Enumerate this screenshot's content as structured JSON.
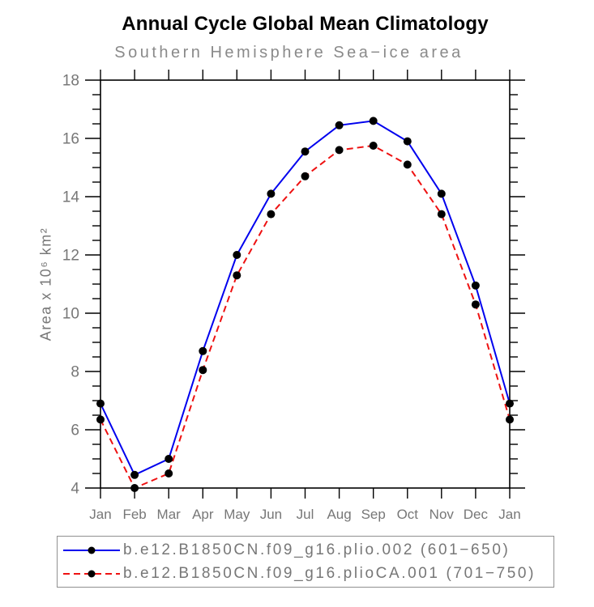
{
  "chart_data": {
    "type": "line",
    "title": "Annual Cycle Global Mean Climatology",
    "subtitle": "Southern Hemisphere Sea−ice area",
    "ylabel": "Area x 10⁶ km²",
    "xlabel": "",
    "categories": [
      "Jan",
      "Feb",
      "Mar",
      "Apr",
      "May",
      "Jun",
      "Jul",
      "Aug",
      "Sep",
      "Oct",
      "Nov",
      "Dec",
      "Jan"
    ],
    "series": [
      {
        "name": "b.e12.B1850CN.f09_g16.plio.002 (601−650)",
        "color": "#0000ee",
        "style": "solid",
        "marker": "black-dot",
        "values": [
          6.9,
          4.45,
          5.0,
          8.7,
          12.0,
          14.1,
          15.55,
          16.45,
          16.6,
          15.9,
          14.1,
          10.95,
          6.9
        ]
      },
      {
        "name": "b.e12.B1850CN.f09_g16.plioCA.001 (701−750)",
        "color": "#ee1111",
        "style": "dashed",
        "marker": "black-dot",
        "values": [
          6.35,
          4.0,
          4.5,
          8.05,
          11.3,
          13.4,
          14.7,
          15.6,
          15.75,
          15.1,
          13.4,
          10.3,
          6.35
        ]
      }
    ],
    "ylim": [
      4,
      18
    ],
    "ytick_major": 2,
    "ytick_minor": 0.5,
    "grid": "off",
    "legend_position": "bottom",
    "marker_color": "#000000",
    "axis_color": "#000000",
    "tick_label_color": "#777777"
  }
}
